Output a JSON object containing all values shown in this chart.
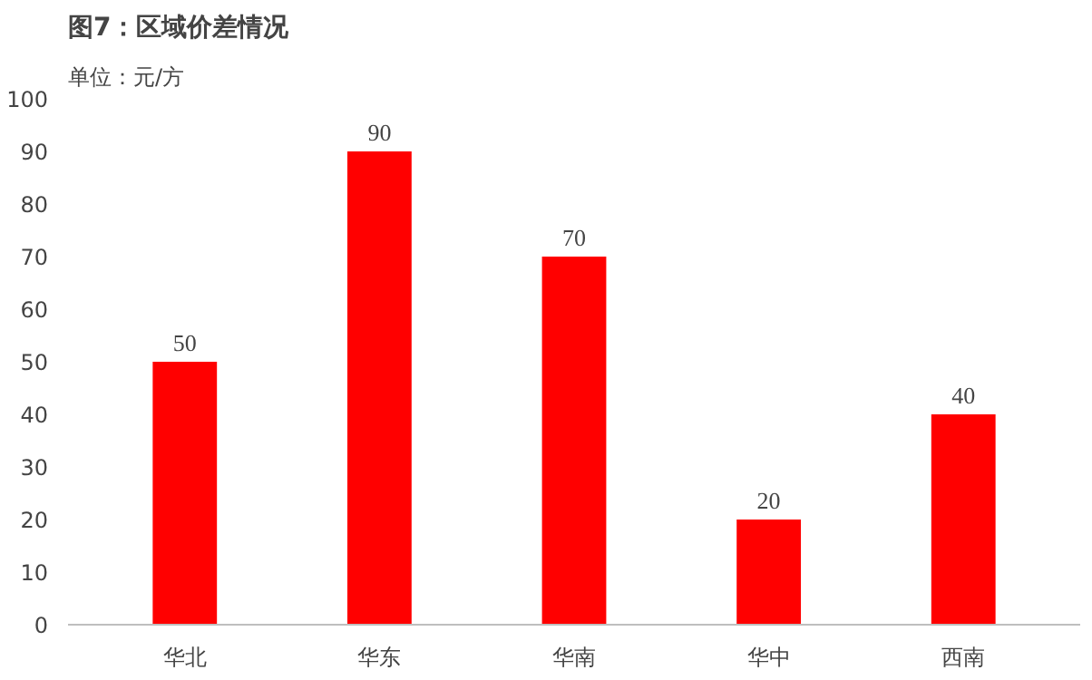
{
  "chart_data": {
    "type": "bar",
    "title": "图7：区域价差情况",
    "ylabel": "单位：元/方",
    "categories": [
      "华北",
      "华东",
      "华南",
      "华中",
      "西南"
    ],
    "values": [
      50,
      90,
      70,
      20,
      40
    ],
    "color": "#ff0000",
    "ylim": [
      0,
      100
    ],
    "yticks": [
      0,
      10,
      20,
      30,
      40,
      50,
      60,
      70,
      80,
      90,
      100
    ],
    "grid": false,
    "data_labels": true
  }
}
